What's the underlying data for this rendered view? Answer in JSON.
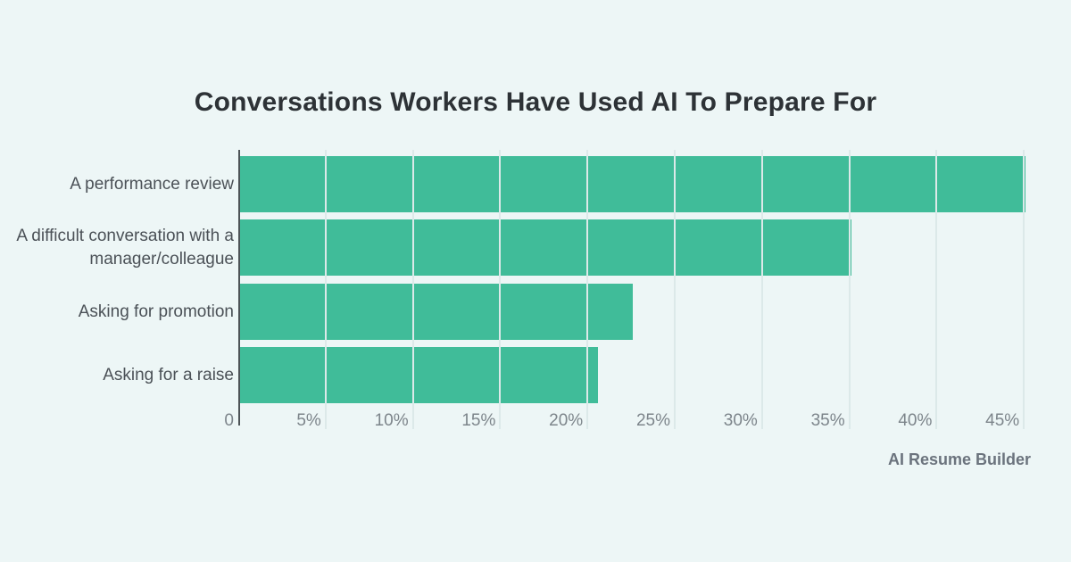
{
  "chart_data": {
    "type": "bar",
    "orientation": "horizontal",
    "title": "Conversations Workers Have Used AI To Prepare For",
    "categories": [
      "A performance review",
      "A difficult conversation with a manager/colleague",
      "Asking for promotion",
      "Asking for a raise"
    ],
    "category_lines": [
      [
        "A performance review"
      ],
      [
        "A difficult conversation with a",
        "manager/colleague"
      ],
      [
        "Asking for promotion"
      ],
      [
        "Asking for a raise"
      ]
    ],
    "values": [
      45,
      35,
      22.5,
      20.5
    ],
    "unit": "%",
    "xlim": [
      0,
      46
    ],
    "x_ticks": [
      "0",
      "5%",
      "10%",
      "15%",
      "20%",
      "25%",
      "30%",
      "35%",
      "40%",
      "45%"
    ],
    "x_tick_values": [
      0,
      5,
      10,
      15,
      20,
      25,
      30,
      35,
      40,
      45
    ],
    "grid": true,
    "legend": false,
    "bar_color": "#40bc99",
    "background_color": "#edf6f6",
    "source": "AI Resume Builder"
  }
}
